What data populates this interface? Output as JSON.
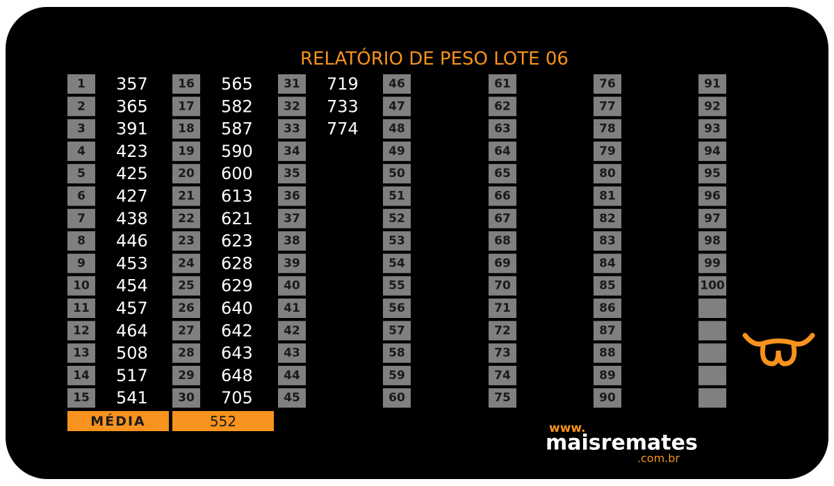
{
  "title": "RELATÓRIO DE PESO LOTE 06",
  "entries": [
    {
      "number": 1,
      "weight": 357
    },
    {
      "number": 2,
      "weight": 365
    },
    {
      "number": 3,
      "weight": 391
    },
    {
      "number": 4,
      "weight": 423
    },
    {
      "number": 5,
      "weight": 425
    },
    {
      "number": 6,
      "weight": 427
    },
    {
      "number": 7,
      "weight": 438
    },
    {
      "number": 8,
      "weight": 446
    },
    {
      "number": 9,
      "weight": 453
    },
    {
      "number": 10,
      "weight": 454
    },
    {
      "number": 11,
      "weight": 457
    },
    {
      "number": 12,
      "weight": 464
    },
    {
      "number": 13,
      "weight": 508
    },
    {
      "number": 14,
      "weight": 517
    },
    {
      "number": 15,
      "weight": 541
    },
    {
      "number": 16,
      "weight": 565
    },
    {
      "number": 17,
      "weight": 582
    },
    {
      "number": 18,
      "weight": 587
    },
    {
      "number": 19,
      "weight": 590
    },
    {
      "number": 20,
      "weight": 600
    },
    {
      "number": 21,
      "weight": 613
    },
    {
      "number": 22,
      "weight": 621
    },
    {
      "number": 23,
      "weight": 623
    },
    {
      "number": 24,
      "weight": 628
    },
    {
      "number": 25,
      "weight": 629
    },
    {
      "number": 26,
      "weight": 640
    },
    {
      "number": 27,
      "weight": 642
    },
    {
      "number": 28,
      "weight": 643
    },
    {
      "number": 29,
      "weight": 648
    },
    {
      "number": 30,
      "weight": 705
    },
    {
      "number": 31,
      "weight": 719
    },
    {
      "number": 32,
      "weight": 733
    },
    {
      "number": 33,
      "weight": 774
    },
    {
      "number": 34
    },
    {
      "number": 35
    },
    {
      "number": 36
    },
    {
      "number": 37
    },
    {
      "number": 38
    },
    {
      "number": 39
    },
    {
      "number": 40
    },
    {
      "number": 41
    },
    {
      "number": 42
    },
    {
      "number": 43
    },
    {
      "number": 44
    },
    {
      "number": 45
    },
    {
      "number": 46
    },
    {
      "number": 47
    },
    {
      "number": 48
    },
    {
      "number": 49
    },
    {
      "number": 50
    },
    {
      "number": 51
    },
    {
      "number": 52
    },
    {
      "number": 53
    },
    {
      "number": 54
    },
    {
      "number": 55
    },
    {
      "number": 56
    },
    {
      "number": 57
    },
    {
      "number": 58
    },
    {
      "number": 59
    },
    {
      "number": 60
    },
    {
      "number": 61
    },
    {
      "number": 62
    },
    {
      "number": 63
    },
    {
      "number": 64
    },
    {
      "number": 65
    },
    {
      "number": 66
    },
    {
      "number": 67
    },
    {
      "number": 68
    },
    {
      "number": 69
    },
    {
      "number": 70
    },
    {
      "number": 71
    },
    {
      "number": 72
    },
    {
      "number": 73
    },
    {
      "number": 74
    },
    {
      "number": 75
    },
    {
      "number": 76
    },
    {
      "number": 77
    },
    {
      "number": 78
    },
    {
      "number": 79
    },
    {
      "number": 80
    },
    {
      "number": 81
    },
    {
      "number": 82
    },
    {
      "number": 83
    },
    {
      "number": 84
    },
    {
      "number": 85
    },
    {
      "number": 86
    },
    {
      "number": 87
    },
    {
      "number": 88
    },
    {
      "number": 89
    },
    {
      "number": 90
    },
    {
      "number": 91
    },
    {
      "number": 92
    },
    {
      "number": 93
    },
    {
      "number": 94
    },
    {
      "number": 95
    },
    {
      "number": 96
    },
    {
      "number": 97
    },
    {
      "number": 98
    },
    {
      "number": 99
    },
    {
      "number": 100
    }
  ],
  "average": {
    "label": "MÉDIA",
    "value": 552
  },
  "logo": {
    "prefix": "www.",
    "name": "maisremates",
    "suffix": ".com.br"
  }
}
